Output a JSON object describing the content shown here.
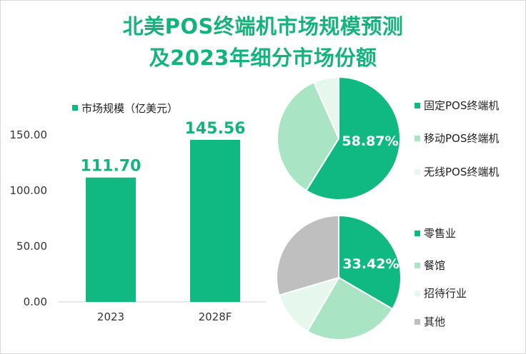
{
  "title_line1": "北美POS终端机市场规模预测",
  "title_line2": "及2023年细分市场份额",
  "colors": {
    "title": "#14b37d",
    "bar": "#10b981",
    "pie": [
      "#10b981",
      "#a9e4c4",
      "#e6f7ee",
      "#bfbfbf"
    ]
  },
  "chart_data": [
    {
      "type": "bar",
      "categories": [
        "2023",
        "2028F"
      ],
      "series": [
        {
          "name": "市场规模（亿美元）",
          "values": [
            111.7,
            145.56
          ]
        }
      ],
      "data_labels": [
        "111.70",
        "145.56"
      ],
      "yticks": [
        "0.00",
        "50.00",
        "100.00",
        "150.00"
      ],
      "ylim": [
        0,
        150
      ],
      "legend_position": "top-left"
    },
    {
      "type": "pie",
      "labels": [
        "固定POS终端机",
        "移动POS终端机",
        "无线POS终端机"
      ],
      "values": [
        58.87,
        34.5,
        6.63
      ],
      "data_labels": [
        "58.87%"
      ],
      "legend_position": "right"
    },
    {
      "type": "pie",
      "labels": [
        "零售业",
        "餐馆",
        "招待行业",
        "其他"
      ],
      "values": [
        33.42,
        25.0,
        12.0,
        29.58
      ],
      "data_labels": [
        "33.42%"
      ],
      "legend_position": "right"
    }
  ]
}
